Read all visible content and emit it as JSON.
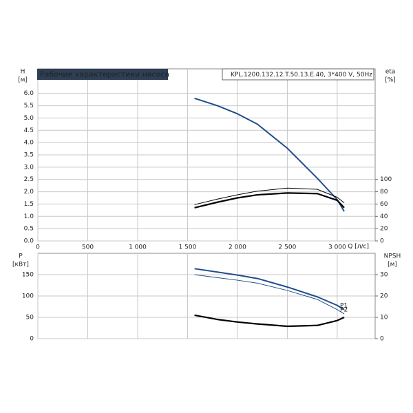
{
  "chart_data": [
    {
      "type": "line",
      "title": "Рабочие характеристики насоса",
      "subtitle": "KPL.1200.132.12.T.50.13.E.40, 3*400 V, 50Hz",
      "y_label": "H",
      "y_unit": "[м]",
      "y2_label": "eta",
      "y2_unit": "[%]",
      "x_label": "Q [л/с]",
      "x": [
        1570,
        1800,
        2000,
        2200,
        2500,
        2800,
        3000,
        3070
      ],
      "xlim": [
        0,
        3380
      ],
      "xticks": [
        0,
        500,
        {
          "value": 1000,
          "label": "1 000"
        },
        {
          "value": 1500,
          "label": "1 500"
        },
        {
          "value": 2000,
          "label": "2 000"
        },
        {
          "value": 2500,
          "label": "2 500"
        },
        {
          "value": 3000,
          "label": "3 000"
        }
      ],
      "ylim": [
        0,
        7
      ],
      "yticks": [
        {
          "value": 0,
          "label": "0.0"
        },
        {
          "value": 0.5,
          "label": "0.5"
        },
        {
          "value": 1,
          "label": "1.0"
        },
        {
          "value": 1.5,
          "label": "1.5"
        },
        {
          "value": 2,
          "label": "2.0"
        },
        {
          "value": 2.5,
          "label": "2.5"
        },
        {
          "value": 3,
          "label": "3.0"
        },
        {
          "value": 3.5,
          "label": "3.5"
        },
        {
          "value": 4,
          "label": "4.0"
        },
        {
          "value": 4.5,
          "label": "4.5"
        },
        {
          "value": 5,
          "label": "5.0"
        },
        {
          "value": 5.5,
          "label": "5.5"
        },
        {
          "value": 6,
          "label": "6.0"
        }
      ],
      "y2lim": [
        0,
        280
      ],
      "y2ticks": [
        0,
        20,
        40,
        60,
        80,
        100
      ],
      "grid": true,
      "series": [
        {
          "color": "#1f4e8c",
          "line_width": 2,
          "values": [
            5.8,
            5.5,
            5.17,
            4.75,
            3.77,
            2.55,
            1.68,
            1.2
          ]
        },
        {
          "color": "#000000",
          "line_width": 1,
          "axis": "y2",
          "values": [
            59,
            68,
            75,
            81,
            86,
            84,
            71,
            62
          ]
        },
        {
          "color": "#000000",
          "line_width": 2.2,
          "axis": "y2",
          "values": [
            54,
            63,
            70,
            75,
            78,
            77,
            66,
            54
          ]
        }
      ]
    },
    {
      "type": "line",
      "y_label": "P",
      "y_unit": "[кВт]",
      "y2_label": "NPSH",
      "y2_unit": "[м]",
      "x": [
        1570,
        1800,
        2000,
        2200,
        2500,
        2800,
        3000,
        3070
      ],
      "xlim": [
        0,
        3380
      ],
      "ylim": [
        0,
        200
      ],
      "yticks": [
        0,
        50,
        100,
        150
      ],
      "y2lim": [
        0,
        40
      ],
      "y2ticks": [
        0,
        10,
        20,
        30
      ],
      "grid": true,
      "series": [
        {
          "name": "P1",
          "color": "#1f4e8c",
          "line_width": 2,
          "values": [
            164,
            156,
            149,
            141,
            121,
            98,
            78,
            68
          ]
        },
        {
          "name": "P2",
          "color": "#1f4e8c",
          "line_width": 1,
          "values": [
            150,
            143,
            137,
            130,
            113,
            92,
            68,
            58
          ]
        },
        {
          "color": "#000000",
          "line_width": 2.2,
          "axis": "y2",
          "values": [
            11,
            9,
            7.8,
            6.9,
            5.8,
            6.2,
            8.5,
            10
          ]
        }
      ]
    }
  ]
}
